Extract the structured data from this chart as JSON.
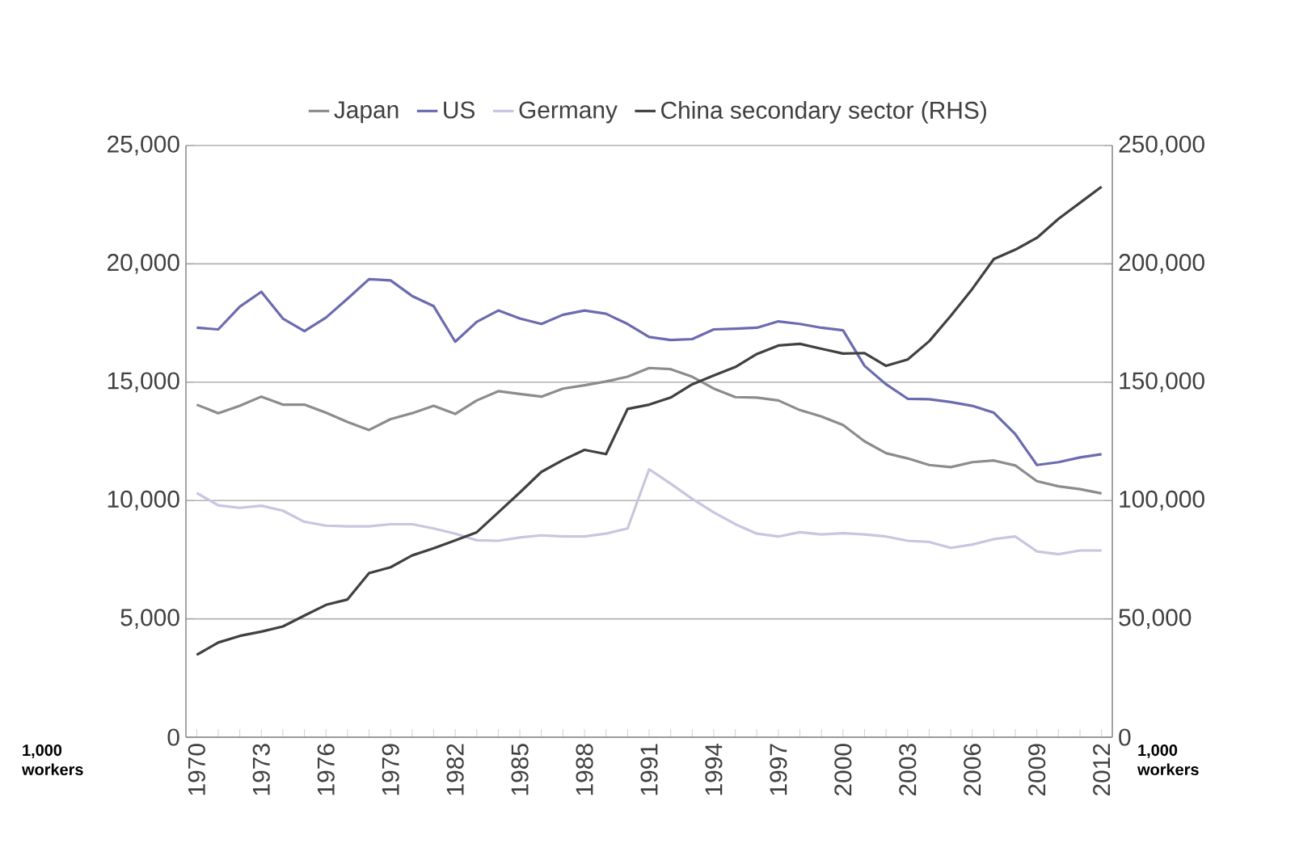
{
  "chart_data": {
    "type": "line",
    "categories": [
      "1970",
      null,
      null,
      "1973",
      null,
      null,
      "1976",
      null,
      null,
      "1979",
      null,
      null,
      "1982",
      null,
      null,
      "1985",
      null,
      null,
      "1988",
      null,
      null,
      "1991",
      null,
      null,
      "1994",
      null,
      null,
      "1997",
      null,
      null,
      "2000",
      null,
      null,
      "2003",
      null,
      null,
      "2006",
      null,
      null,
      "2009",
      null,
      null,
      "2012"
    ],
    "series": [
      {
        "name": "Japan",
        "color": "#8c8c8c",
        "values": [
          14050,
          13690,
          14000,
          14390,
          14050,
          14050,
          13710,
          13320,
          12980,
          13440,
          13690,
          14000,
          13660,
          14230,
          14620,
          14500,
          14390,
          14730,
          14870,
          15030,
          15230,
          15600,
          15550,
          15230,
          14730,
          14370,
          14350,
          14230,
          13820,
          13550,
          13190,
          12500,
          12000,
          11780,
          11500,
          11410,
          11620,
          11690,
          11480,
          10820,
          10600,
          10480,
          10300
        ]
      },
      {
        "name": "US",
        "color": "#6b6baf",
        "values": [
          17300,
          17230,
          18190,
          18820,
          17690,
          17160,
          17730,
          18530,
          19350,
          19300,
          18640,
          18210,
          16710,
          17550,
          18030,
          17690,
          17460,
          17850,
          18030,
          17890,
          17460,
          16910,
          16780,
          16820,
          17230,
          17260,
          17300,
          17570,
          17460,
          17300,
          17190,
          15690,
          14910,
          14300,
          14280,
          14160,
          14000,
          13710,
          12800,
          11500,
          11620,
          11820,
          11960
        ]
      },
      {
        "name": "Germany",
        "color": "#c8c6e0",
        "values": [
          10320,
          9800,
          9690,
          9780,
          9570,
          9100,
          8940,
          8910,
          8910,
          9000,
          9000,
          8820,
          8600,
          8320,
          8300,
          8440,
          8530,
          8480,
          8480,
          8600,
          8820,
          11320,
          10710,
          10070,
          9500,
          9000,
          8600,
          8480,
          8660,
          8570,
          8620,
          8570,
          8480,
          8300,
          8250,
          8000,
          8140,
          8370,
          8480,
          7850,
          7730,
          7890,
          7890
        ]
      },
      {
        "name": "China secondary sector (RHS)",
        "color": "#404040",
        "axis": "y2",
        "values": [
          34800,
          40000,
          42800,
          44600,
          46800,
          51400,
          55900,
          58200,
          69300,
          71800,
          76800,
          79800,
          83200,
          86600,
          95000,
          103400,
          112100,
          117100,
          121400,
          119600,
          138700,
          140500,
          143500,
          149100,
          152800,
          156400,
          161900,
          165500,
          166200,
          164100,
          162100,
          162300,
          156900,
          159600,
          167300,
          178000,
          189400,
          202000,
          206000,
          211000,
          219000,
          225800,
          232600
        ]
      }
    ],
    "ylabel": "1,000 workers",
    "y2label": "1,000 workers",
    "ylim": [
      0,
      25000
    ],
    "yticks": [
      0,
      {
        "value": 5000,
        "label": "5,000"
      },
      {
        "value": 10000,
        "label": "10,000"
      },
      {
        "value": 15000,
        "label": "15,000"
      },
      {
        "value": 20000,
        "label": "20,000"
      },
      {
        "value": 25000,
        "label": "25,000"
      }
    ],
    "y2lim": [
      0,
      250000
    ],
    "y2ticks": [
      0,
      {
        "value": 50000,
        "label": "50,000"
      },
      {
        "value": 100000,
        "label": "100,000"
      },
      {
        "value": 150000,
        "label": "150,000"
      },
      {
        "value": 200000,
        "label": "200,000"
      },
      {
        "value": 250000,
        "label": "250,000"
      }
    ],
    "grid": "y",
    "legend": "top"
  }
}
